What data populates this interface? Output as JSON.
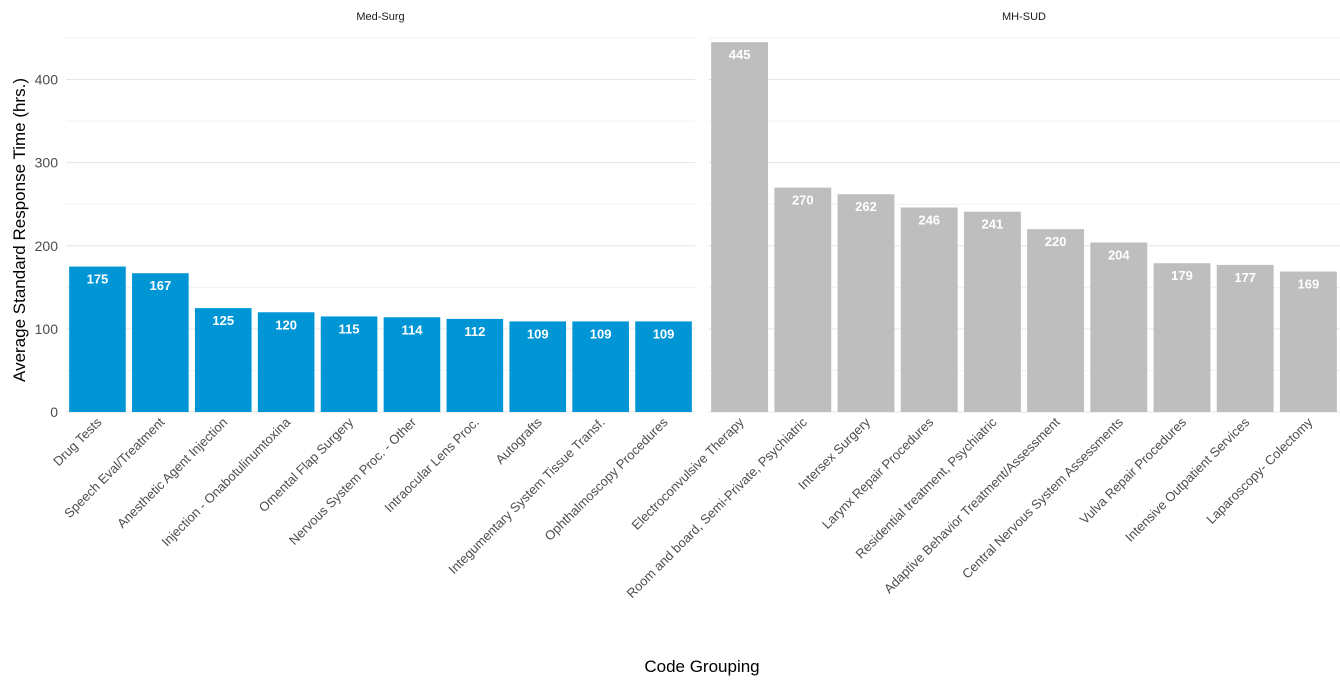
{
  "chart_data": {
    "type": "bar",
    "ylabel": "Average Standard Response Time (hrs.)",
    "xlabel": "Code Grouping",
    "ylim": [
      0,
      450
    ],
    "yticks": [
      0,
      100,
      200,
      300,
      400
    ],
    "grid": true,
    "legend": "none",
    "colors": {
      "Med-Surg": "#0096d6",
      "MH-SUD": "#bebebe"
    },
    "facets": [
      {
        "name": "Med-Surg",
        "categories": [
          "Drug Tests",
          "Speech Eval/Treatment",
          "Anesthetic Agent Injection",
          "Injection - Onabotulinumtoxina",
          "Omental Flap Surgery",
          "Nervous System Proc. - Other",
          "Intraocular Lens Proc.",
          "Autografts",
          "Integumentary System Tissue Transf.",
          "Ophthalmoscopy Procedures"
        ],
        "values": [
          175,
          167,
          125,
          120,
          115,
          114,
          112,
          109,
          109,
          109
        ]
      },
      {
        "name": "MH-SUD",
        "categories": [
          "Electroconvulsive Therapy",
          "Room and board, Semi-Private, Psychiatric",
          "Intersex Surgery",
          "Larynx Repair Procedures",
          "Residential treatment, Psychiatric",
          "Adaptive Behavior Treatment/Assessment",
          "Central Nervous System Assessments",
          "Vulva Repair Procedures",
          "Intensive Outpatient Services",
          "Laparoscopy- Colectomy"
        ],
        "values": [
          445,
          270,
          262,
          246,
          241,
          220,
          204,
          179,
          177,
          169
        ]
      }
    ]
  }
}
